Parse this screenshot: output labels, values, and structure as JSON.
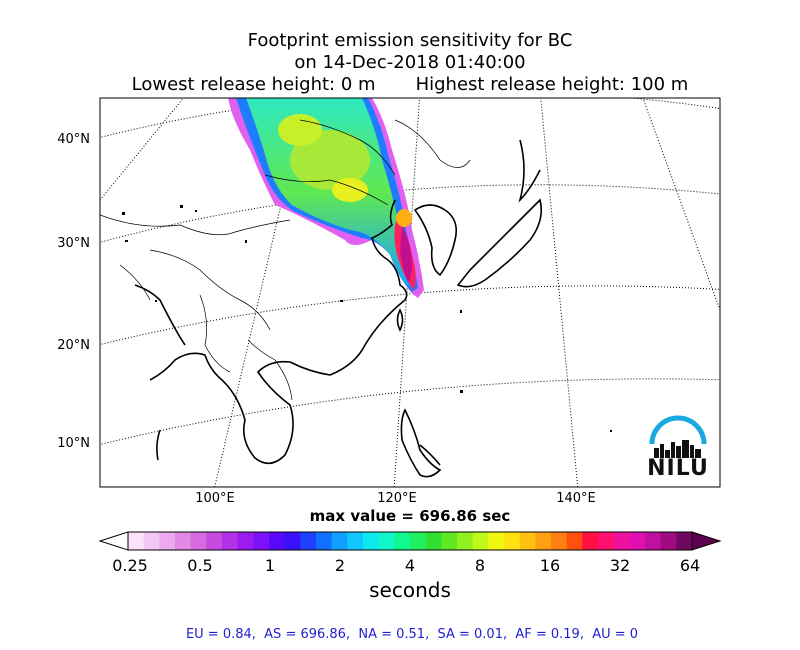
{
  "title": {
    "line1": "Footprint emission sensitivity for BC",
    "line2": "on 14-Dec-2018 01:40:00",
    "line3": "Lowest release height: 0 m       Highest release height: 100 m"
  },
  "map": {
    "lat_labels": [
      "40°N",
      "30°N",
      "20°N",
      "10°N"
    ],
    "lon_labels": [
      "100°E",
      "120°E",
      "140°E"
    ]
  },
  "max_value": "max value = 696.86 sec",
  "colorbar": {
    "ticks": [
      "0.25",
      "0.5",
      "1",
      "2",
      "4",
      "8",
      "16",
      "32",
      "64"
    ],
    "unit": "seconds",
    "colors": [
      "#fbe4fb",
      "#f4c8f4",
      "#ecaaee",
      "#e08ae6",
      "#d66ae0",
      "#c84ae0",
      "#b430e6",
      "#9a1cf0",
      "#7c10f6",
      "#5a08f8",
      "#3a10fa",
      "#1e40ff",
      "#1070ff",
      "#10a0ff",
      "#10c8ff",
      "#10e8f0",
      "#10f8c8",
      "#10f890",
      "#20f060",
      "#30e030",
      "#60e820",
      "#90f020",
      "#c0f818",
      "#f0f810",
      "#ffe010",
      "#ffc010",
      "#ffa010",
      "#ff8010",
      "#ff5010",
      "#ff1040",
      "#ff1070",
      "#f010a0",
      "#e010b0",
      "#c010a0",
      "#a00c80",
      "#700860"
    ]
  },
  "stats": "EU = 0.84,  AS = 696.86,  NA = 0.51,  SA = 0.01,  AF = 0.19,  AU = 0",
  "logo": {
    "text": "NILU",
    "arc_color": "#1aa8e0"
  }
}
